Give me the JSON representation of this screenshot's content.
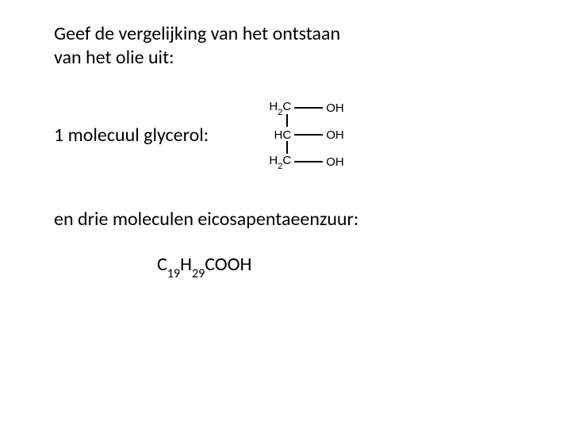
{
  "title_line1": "Geef de vergelijking van het ontstaan",
  "title_line2": "van het olie uit:",
  "label_glycerol": "1 molecuul glycerol:",
  "glycerol_structure": {
    "rows": [
      {
        "carbon": "H",
        "carbon_sub": "2",
        "carbon_suffix": "C",
        "right": "OH"
      },
      {
        "carbon": "HC",
        "carbon_sub": "",
        "carbon_suffix": "",
        "right": "OH"
      },
      {
        "carbon": "H",
        "carbon_sub": "2",
        "carbon_suffix": "C",
        "right": "OH"
      }
    ],
    "colors": {
      "text": "#000000",
      "bond": "#000000"
    },
    "font_size_main": 15,
    "font_size_sub": 11
  },
  "label_eicosa": "en drie moleculen eicosapentaeenzuur:",
  "formula": {
    "c": "C",
    "c_sub": "19",
    "h": "H",
    "h_sub": "29",
    "tail": "COOH",
    "font_size": 24,
    "sub_font_size": 16
  },
  "colors": {
    "background": "#ffffff",
    "text": "#000000"
  }
}
